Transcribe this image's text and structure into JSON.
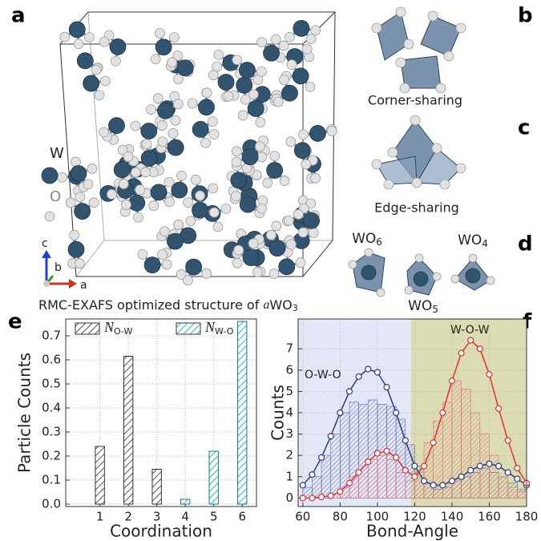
{
  "panel_labels": [
    "a",
    "b",
    "c",
    "d",
    "e",
    "f"
  ],
  "structure": {
    "legend": [
      "W",
      "O"
    ],
    "axes": [
      "c",
      "b",
      "a"
    ],
    "caption": {
      "text": "RMC-EXAFS optimized structure of",
      "italic": "a",
      "formula": "WO",
      "sub": "3"
    }
  },
  "polyhedra": {
    "corner": "Corner-sharing",
    "edge": "Edge-sharing",
    "units": [
      {
        "formula": "WO",
        "sub": "6"
      },
      {
        "formula": "WO",
        "sub": "4"
      },
      {
        "formula": "WO",
        "sub": "5"
      }
    ]
  },
  "chart_data": [
    {
      "type": "bar",
      "x": [
        1,
        2,
        3,
        4,
        5,
        6
      ],
      "series": [
        {
          "name": "N",
          "name_sub": "O-W",
          "color": "#555555",
          "values": [
            0.24,
            0.615,
            0.145,
            null,
            null,
            null
          ]
        },
        {
          "name": "N",
          "name_sub": "W-O",
          "color": "#1fbcbc",
          "values": [
            null,
            null,
            null,
            0.02,
            0.22,
            0.76
          ]
        }
      ],
      "xlim": [
        -0.2,
        6.5
      ],
      "xticks": [
        1,
        2,
        3,
        4,
        5,
        6
      ],
      "ylim": [
        -0.01,
        0.77
      ],
      "yticks": [
        {
          "value": 0,
          "label": "0.0"
        },
        0.1,
        0.2,
        0.3,
        0.4,
        0.5,
        0.6,
        0.7
      ],
      "xlabel": "Coordination",
      "ylabel": "Particle Counts",
      "grid": true
    },
    {
      "type": "line",
      "x": [
        60,
        65,
        70,
        75,
        80,
        85,
        90,
        95,
        100,
        105,
        110,
        115,
        120,
        125,
        130,
        135,
        140,
        145,
        150,
        155,
        160,
        165,
        170,
        175,
        180
      ],
      "series": [
        {
          "name": "O-W-O",
          "color": "#2a3a8a",
          "values": [
            0.6,
            1.1,
            1.9,
            2.9,
            4.0,
            5.0,
            5.7,
            6.05,
            5.9,
            5.2,
            4.0,
            2.7,
            1.5,
            0.8,
            0.6,
            0.6,
            0.8,
            1.0,
            1.3,
            1.5,
            1.6,
            1.5,
            1.2,
            0.9,
            0.6
          ]
        },
        {
          "name": "W-O-W",
          "color": "#e03030",
          "values": [
            0,
            0,
            0.05,
            0.1,
            0.3,
            0.7,
            1.2,
            1.7,
            2.1,
            2.2,
            1.9,
            1.3,
            1.0,
            1.5,
            2.6,
            4.0,
            5.5,
            6.8,
            7.4,
            7.0,
            5.8,
            4.2,
            2.7,
            1.4,
            0.7
          ]
        }
      ],
      "histograms": [
        {
          "color": "#5a6ab0",
          "bins": [
            60,
            65,
            70,
            75,
            80,
            85,
            90,
            95,
            100,
            105,
            110,
            115,
            120,
            125,
            130,
            135,
            140,
            145,
            150,
            155,
            160,
            165,
            170,
            175,
            180
          ],
          "counts": [
            0.5,
            1,
            2,
            3,
            4,
            4.5,
            4.4,
            4.6,
            4.4,
            4.3,
            3.7,
            2.5,
            1.5,
            0.7,
            0.4,
            0.5,
            0.8,
            1.0,
            1.2,
            1.4,
            1.2,
            1.0,
            0.7,
            0.4
          ]
        },
        {
          "color": "#e07070",
          "bins": [
            60,
            65,
            70,
            75,
            80,
            85,
            90,
            95,
            100,
            105,
            110,
            115,
            120,
            125,
            130,
            135,
            140,
            145,
            150,
            155,
            160,
            165,
            170,
            175,
            180
          ],
          "counts": [
            0,
            0,
            0,
            0.2,
            0.5,
            1,
            1.5,
            1.8,
            2.0,
            1.8,
            1.2,
            0.8,
            1.2,
            2.6,
            3.6,
            4.5,
            5.5,
            5.1,
            4.0,
            3.0,
            2.0,
            1.0,
            0.5,
            0.3
          ]
        }
      ],
      "regions": [
        {
          "from": 57.5,
          "to": 118,
          "color": "#e4e7f8"
        },
        {
          "from": 118,
          "to": 180,
          "color": "#dcdcb2"
        }
      ],
      "xlim": [
        57.5,
        180
      ],
      "xticks": [
        60,
        80,
        100,
        120,
        140,
        160,
        180
      ],
      "ylim": [
        -0.4,
        8.4
      ],
      "yticks": [
        0,
        1,
        2,
        3,
        4,
        5,
        6,
        7
      ],
      "xlabel": "Bond-Angle",
      "ylabel": "Counts",
      "grid": true
    }
  ]
}
